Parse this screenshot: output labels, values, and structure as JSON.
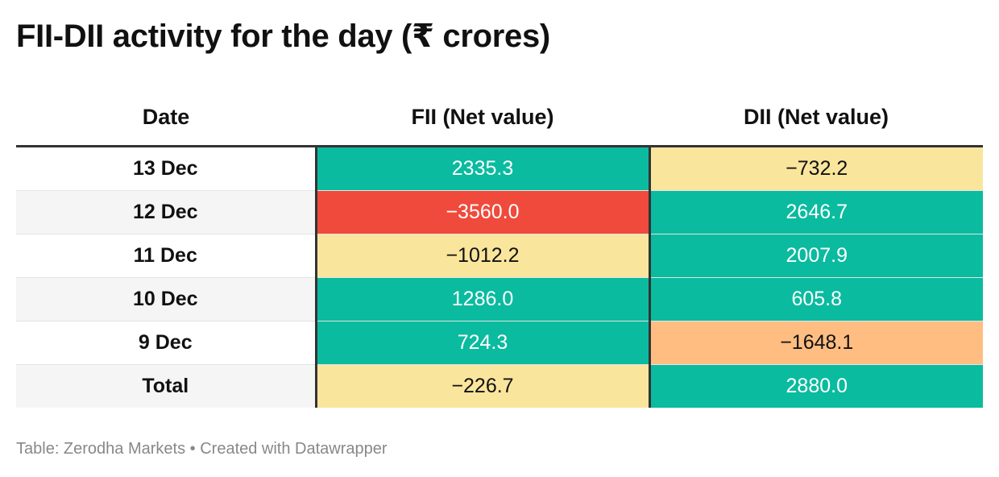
{
  "title": "FII-DII activity for the day (₹ crores)",
  "source": "Table: Zerodha Markets • Created with Datawrapper",
  "colors": {
    "positive": "#0abb9f",
    "negative_strong": "#f04a3c",
    "negative_mild": "#fae59c",
    "negative_medium": "#ffbd82",
    "header_rule": "#333333"
  },
  "chart_data": {
    "type": "table",
    "title": "FII-DII activity for the day (₹ crores)",
    "columns": [
      "Date",
      "FII (Net value)",
      "DII (Net value)"
    ],
    "rows": [
      {
        "date": "13 Dec",
        "fii": "2335.3",
        "dii": "−732.2",
        "fii_value": 2335.3,
        "dii_value": -732.2,
        "fii_color": "#0abb9f",
        "dii_color": "#fae59c"
      },
      {
        "date": "12 Dec",
        "fii": "−3560.0",
        "dii": "2646.7",
        "fii_value": -3560.0,
        "dii_value": 2646.7,
        "fii_color": "#f04a3c",
        "dii_color": "#0abb9f"
      },
      {
        "date": "11 Dec",
        "fii": "−1012.2",
        "dii": "2007.9",
        "fii_value": -1012.2,
        "dii_value": 2007.9,
        "fii_color": "#fae59c",
        "dii_color": "#0abb9f"
      },
      {
        "date": "10 Dec",
        "fii": "1286.0",
        "dii": "605.8",
        "fii_value": 1286.0,
        "dii_value": 605.8,
        "fii_color": "#0abb9f",
        "dii_color": "#0abb9f"
      },
      {
        "date": "9 Dec",
        "fii": "724.3",
        "dii": "−1648.1",
        "fii_value": 724.3,
        "dii_value": -1648.1,
        "fii_color": "#0abb9f",
        "dii_color": "#ffbd82"
      },
      {
        "date": "Total",
        "fii": "−226.7",
        "dii": "2880.0",
        "fii_value": -226.7,
        "dii_value": 2880.0,
        "fii_color": "#fae59c",
        "dii_color": "#0abb9f"
      }
    ]
  }
}
